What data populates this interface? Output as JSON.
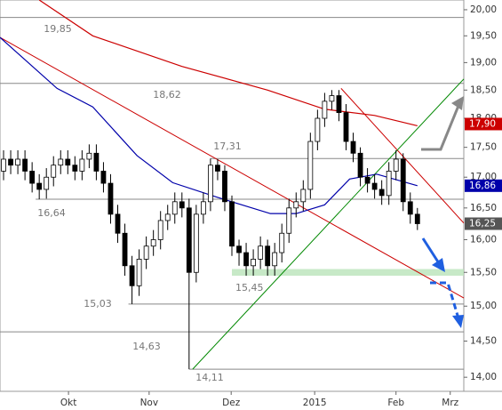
{
  "chart_data": {
    "type": "candlestick",
    "log": true,
    "xlim": [
      -0.5,
      64.5
    ],
    "ylim": [
      13.81,
      20.19
    ],
    "xticks": [
      {
        "value": 9.1,
        "label": "Okt"
      },
      {
        "value": 20.4,
        "label": "Nov"
      },
      {
        "value": 31.9,
        "label": "Dez"
      },
      {
        "value": 43.6,
        "label": "2015"
      },
      {
        "value": 55.0,
        "label": "Feb"
      },
      {
        "value": 62.6,
        "label": "Mrz"
      }
    ],
    "yticks": [
      {
        "value": 14,
        "label": "14,00"
      },
      {
        "value": 14.5,
        "label": "14,50"
      },
      {
        "value": 15,
        "label": "15,00"
      },
      {
        "value": 15.5,
        "label": "15,50"
      },
      {
        "value": 16,
        "label": "16,00"
      },
      {
        "value": 16.5,
        "label": "16,50"
      },
      {
        "value": 17,
        "label": "17,00"
      },
      {
        "value": 17.5,
        "label": "17,50"
      },
      {
        "value": 18,
        "label": "18,00"
      },
      {
        "value": 18.5,
        "label": "18,50"
      },
      {
        "value": 19,
        "label": "19,00"
      },
      {
        "value": 19.5,
        "label": "19,50"
      },
      {
        "value": 20,
        "label": "20,00"
      }
    ],
    "open": [
      17.1,
      17.3,
      17.2,
      17.3,
      17.1,
      16.9,
      16.8,
      17.0,
      17.2,
      17.3,
      17.2,
      17.1,
      17.3,
      17.4,
      17.1,
      16.9,
      16.4,
      16.1,
      15.6,
      15.3,
      15.7,
      15.9,
      16.0,
      16.3,
      16.4,
      16.6,
      16.5,
      15.5,
      16.4,
      16.6,
      17.2,
      17.1,
      16.6,
      15.9,
      15.8,
      15.6,
      15.7,
      15.9,
      15.6,
      15.8,
      16.1,
      16.5,
      16.6,
      16.8,
      17.6,
      18.0,
      18.3,
      18.4,
      18.1,
      17.6,
      17.4,
      17.0,
      16.9,
      16.8,
      16.7,
      17.1,
      17.3,
      16.6,
      16.4
    ],
    "high": [
      17.45,
      17.45,
      17.45,
      17.45,
      17.25,
      17.05,
      17.15,
      17.35,
      17.45,
      17.45,
      17.35,
      17.45,
      17.55,
      17.55,
      17.25,
      17.05,
      16.55,
      16.25,
      15.75,
      15.85,
      16.05,
      16.15,
      16.45,
      16.55,
      16.75,
      16.75,
      16.65,
      16.55,
      16.75,
      17.31,
      17.3,
      17.2,
      16.7,
      16.0,
      15.95,
      15.85,
      16.05,
      16.0,
      15.95,
      16.25,
      16.65,
      16.75,
      16.95,
      17.75,
      18.15,
      18.45,
      18.5,
      18.5,
      18.25,
      17.75,
      17.5,
      17.15,
      17.05,
      16.95,
      17.25,
      17.45,
      17.4,
      16.75,
      16.5
    ],
    "low": [
      16.95,
      17.05,
      17.05,
      16.95,
      16.75,
      16.64,
      16.65,
      16.85,
      17.05,
      17.05,
      16.95,
      16.95,
      17.15,
      16.95,
      16.75,
      16.25,
      15.95,
      15.45,
      15.03,
      15.15,
      15.55,
      15.75,
      15.85,
      16.15,
      16.25,
      16.35,
      14.11,
      15.35,
      16.25,
      16.45,
      16.95,
      16.45,
      15.75,
      15.6,
      15.45,
      15.45,
      15.55,
      15.45,
      15.45,
      15.65,
      15.95,
      16.35,
      16.45,
      16.65,
      17.45,
      17.85,
      18.15,
      17.95,
      17.45,
      17.25,
      16.85,
      16.75,
      16.65,
      16.55,
      16.55,
      16.95,
      16.45,
      16.25,
      16.15
    ],
    "close": [
      17.3,
      17.2,
      17.3,
      17.1,
      16.9,
      16.8,
      17.0,
      17.2,
      17.3,
      17.2,
      17.1,
      17.3,
      17.4,
      17.1,
      16.9,
      16.4,
      16.1,
      15.6,
      15.3,
      15.7,
      15.9,
      16.0,
      16.3,
      16.4,
      16.6,
      16.5,
      15.5,
      16.4,
      16.6,
      17.2,
      17.1,
      16.6,
      15.9,
      15.8,
      15.6,
      15.7,
      15.9,
      15.6,
      15.8,
      16.1,
      16.5,
      16.6,
      16.8,
      17.6,
      18.0,
      18.3,
      18.4,
      18.1,
      17.6,
      17.4,
      17.0,
      16.9,
      16.8,
      16.7,
      17.1,
      17.3,
      16.6,
      16.4,
      16.25
    ],
    "moving_averages": [
      {
        "color": "#cc0000",
        "x": [
          5,
          12.5,
          25,
          37,
          45,
          52,
          58
        ],
        "values": [
          20.19,
          19.5,
          18.93,
          18.5,
          18.16,
          18.05,
          17.87
        ],
        "price_label": {
          "value": 17.9,
          "label": "17,90"
        }
      },
      {
        "color": "#0000aa",
        "x": [
          -0.5,
          7.5,
          12.5,
          18.7,
          23.7,
          30,
          37.4,
          41,
          45,
          48.5,
          52.3,
          58
        ],
        "values": [
          19.47,
          18.53,
          18.2,
          17.36,
          16.91,
          16.67,
          16.41,
          16.41,
          16.55,
          16.97,
          17.05,
          16.86
        ],
        "price_label": {
          "value": 16.86,
          "label": "16,86"
        }
      }
    ],
    "last_price": {
      "value": 16.25,
      "label": "16,25",
      "color": "#555555"
    },
    "trendlines": [
      {
        "color": "#cc0000",
        "x": [
          -0.5,
          64.5
        ],
        "values": [
          19.47,
          15.12
        ]
      },
      {
        "color": "#cc0000",
        "x": [
          47.3,
          64.5
        ],
        "values": [
          18.53,
          16.26
        ]
      },
      {
        "color": "#008800",
        "x": [
          26.5,
          64.5
        ],
        "values": [
          14.11,
          18.7
        ]
      }
    ],
    "levels": [
      {
        "label": "19,85",
        "value": 19.85,
        "from": -0.5
      },
      {
        "label": "18,62",
        "value": 18.62,
        "from": -0.5
      },
      {
        "label": "17,31",
        "value": 17.31,
        "from": 29
      },
      {
        "label": "16,64",
        "value": 16.64,
        "from": 4.5
      },
      {
        "label": "15,03",
        "value": 15.03,
        "from": 17.5
      },
      {
        "label": "14,63",
        "value": 14.63,
        "from": -0.5
      },
      {
        "label": "14,11",
        "value": 14.11,
        "from": 26
      }
    ],
    "zone": {
      "label": "15,45",
      "from": 32,
      "range": [
        15.45,
        15.55
      ]
    }
  }
}
